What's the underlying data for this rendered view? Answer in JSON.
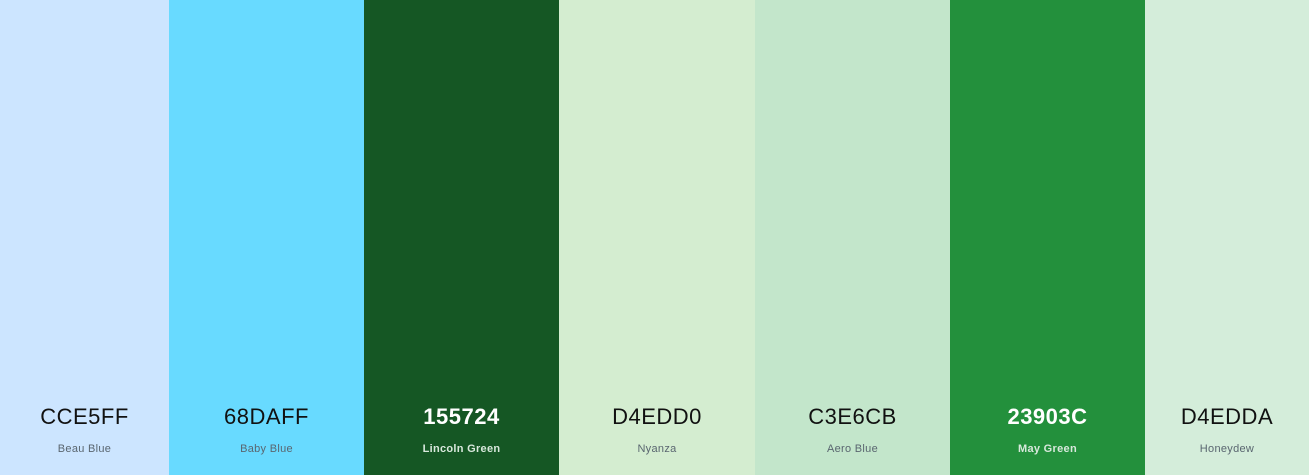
{
  "palette": {
    "colors": [
      {
        "hex": "CCE5FF",
        "name": "Beau Blue",
        "color": "#CCE5FF",
        "tone": "light"
      },
      {
        "hex": "68DAFF",
        "name": "Baby Blue",
        "color": "#68DAFF",
        "tone": "light"
      },
      {
        "hex": "155724",
        "name": "Lincoln Green",
        "color": "#155724",
        "tone": "dark"
      },
      {
        "hex": "D4EDD0",
        "name": "Nyanza",
        "color": "#D4EDD0",
        "tone": "light"
      },
      {
        "hex": "C3E6CB",
        "name": "Aero Blue",
        "color": "#C3E6CB",
        "tone": "light"
      },
      {
        "hex": "23903C",
        "name": "May Green",
        "color": "#23903C",
        "tone": "dark"
      },
      {
        "hex": "D4EDDA",
        "name": "Honeydew",
        "color": "#D4EDDA",
        "tone": "light"
      }
    ]
  }
}
